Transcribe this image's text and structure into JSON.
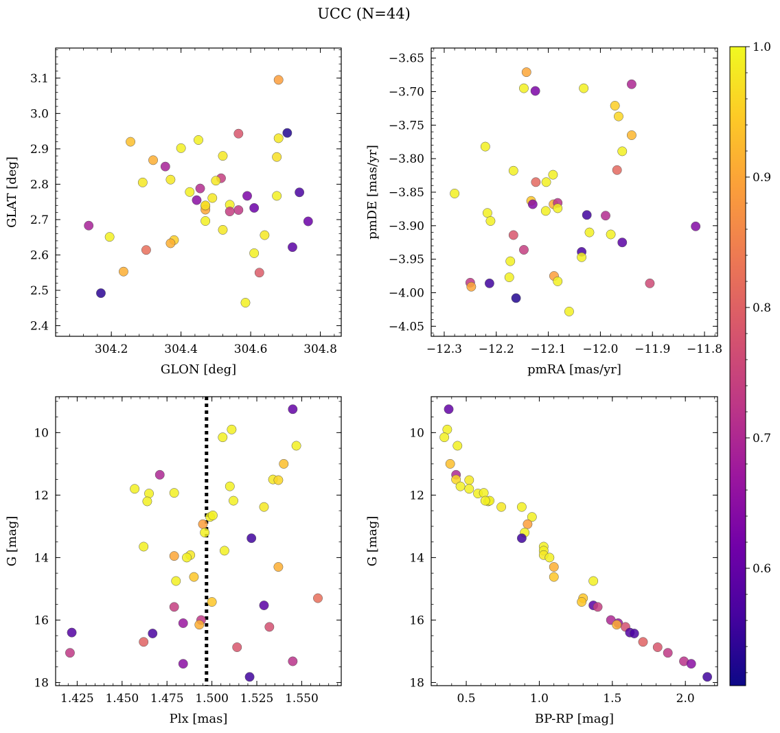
{
  "figure": {
    "title": "UCC (N=44)"
  },
  "colorbar": {
    "ticks": [
      "0.6",
      "0.7",
      "0.8",
      "0.9",
      "1.0"
    ],
    "tick_values": [
      0.6,
      0.7,
      0.8,
      0.9,
      1.0
    ],
    "range": [
      0.51,
      1.0
    ],
    "colormap": "plasma"
  },
  "chart_data": [
    {
      "type": "scatter",
      "xlabel": "GLON [deg]",
      "ylabel": "GLAT [deg]",
      "xlim": [
        304.04,
        304.86
      ],
      "ylim": [
        2.37,
        3.185
      ],
      "xticks": [
        304.2,
        304.4,
        304.6,
        304.8
      ],
      "xtick_labels": [
        "304.2",
        "304.4",
        "304.6",
        "304.8"
      ],
      "yticks": [
        2.4,
        2.5,
        2.6,
        2.7,
        2.8,
        2.9,
        3.0,
        3.1
      ],
      "ytick_labels": [
        "2.4",
        "2.5",
        "2.6",
        "2.7",
        "2.8",
        "2.9",
        "3.0",
        "3.1"
      ],
      "points": [
        {
          "x": 304.68,
          "y": 3.095,
          "c": 0.89
        },
        {
          "x": 304.705,
          "y": 2.945,
          "c": 0.53
        },
        {
          "x": 304.565,
          "y": 2.943,
          "c": 0.78
        },
        {
          "x": 304.68,
          "y": 2.93,
          "c": 0.98
        },
        {
          "x": 304.255,
          "y": 2.92,
          "c": 0.93
        },
        {
          "x": 304.45,
          "y": 2.925,
          "c": 0.99
        },
        {
          "x": 304.4,
          "y": 2.902,
          "c": 0.99
        },
        {
          "x": 304.52,
          "y": 2.88,
          "c": 0.98
        },
        {
          "x": 304.675,
          "y": 2.877,
          "c": 0.97
        },
        {
          "x": 304.32,
          "y": 2.868,
          "c": 0.91
        },
        {
          "x": 304.355,
          "y": 2.85,
          "c": 0.69
        },
        {
          "x": 304.37,
          "y": 2.813,
          "c": 0.98
        },
        {
          "x": 304.515,
          "y": 2.817,
          "c": 0.74
        },
        {
          "x": 304.5,
          "y": 2.81,
          "c": 0.98
        },
        {
          "x": 304.29,
          "y": 2.805,
          "c": 0.98
        },
        {
          "x": 304.455,
          "y": 2.788,
          "c": 0.71
        },
        {
          "x": 304.425,
          "y": 2.778,
          "c": 0.99
        },
        {
          "x": 304.74,
          "y": 2.777,
          "c": 0.57
        },
        {
          "x": 304.675,
          "y": 2.767,
          "c": 0.99
        },
        {
          "x": 304.59,
          "y": 2.767,
          "c": 0.63
        },
        {
          "x": 304.49,
          "y": 2.761,
          "c": 0.98
        },
        {
          "x": 304.445,
          "y": 2.755,
          "c": 0.65
        },
        {
          "x": 304.54,
          "y": 2.742,
          "c": 0.99
        },
        {
          "x": 304.47,
          "y": 2.738,
          "c": 0.95
        },
        {
          "x": 304.61,
          "y": 2.733,
          "c": 0.61
        },
        {
          "x": 304.47,
          "y": 2.728,
          "c": 0.9
        },
        {
          "x": 304.565,
          "y": 2.727,
          "c": 0.73
        },
        {
          "x": 304.54,
          "y": 2.723,
          "c": 0.74
        },
        {
          "x": 304.765,
          "y": 2.695,
          "c": 0.61
        },
        {
          "x": 304.47,
          "y": 2.696,
          "c": 0.99
        },
        {
          "x": 304.135,
          "y": 2.683,
          "c": 0.69
        },
        {
          "x": 304.52,
          "y": 2.671,
          "c": 0.98
        },
        {
          "x": 304.64,
          "y": 2.656,
          "c": 0.98
        },
        {
          "x": 304.195,
          "y": 2.651,
          "c": 0.99
        },
        {
          "x": 304.38,
          "y": 2.642,
          "c": 0.95
        },
        {
          "x": 304.37,
          "y": 2.633,
          "c": 0.91
        },
        {
          "x": 304.72,
          "y": 2.622,
          "c": 0.59
        },
        {
          "x": 304.3,
          "y": 2.614,
          "c": 0.82
        },
        {
          "x": 304.61,
          "y": 2.605,
          "c": 0.99
        },
        {
          "x": 304.235,
          "y": 2.553,
          "c": 0.91
        },
        {
          "x": 304.625,
          "y": 2.55,
          "c": 0.79
        },
        {
          "x": 304.17,
          "y": 2.492,
          "c": 0.54
        },
        {
          "x": 304.585,
          "y": 2.465,
          "c": 0.99
        },
        {
          "x": 304.47,
          "y": 2.74,
          "c": 0.97
        }
      ]
    },
    {
      "type": "scatter",
      "xlabel": "pmRA [mas/yr]",
      "ylabel": "pmDE [mas/yr]",
      "xlim": [
        -12.325,
        -11.775
      ],
      "ylim": [
        -4.065,
        -3.635
      ],
      "xticks": [
        -12.3,
        -12.2,
        -12.1,
        -12.0,
        -11.9,
        -11.8
      ],
      "xtick_labels": [
        "−12.3",
        "−12.2",
        "−12.1",
        "−12.0",
        "−11.9",
        "−11.8"
      ],
      "yticks": [
        -4.05,
        -4.0,
        -3.95,
        -3.9,
        -3.85,
        -3.8,
        -3.75,
        -3.7,
        -3.65
      ],
      "ytick_labels": [
        "−4.05",
        "−4.00",
        "−3.95",
        "−3.90",
        "−3.85",
        "−3.80",
        "−3.75",
        "−3.70",
        "−3.65"
      ],
      "points": [
        {
          "x": -12.142,
          "y": -3.671,
          "c": 0.9
        },
        {
          "x": -12.147,
          "y": -3.695,
          "c": 0.99
        },
        {
          "x": -12.125,
          "y": -3.699,
          "c": 0.63
        },
        {
          "x": -12.032,
          "y": -3.695,
          "c": 0.99
        },
        {
          "x": -11.94,
          "y": -3.689,
          "c": 0.7
        },
        {
          "x": -11.972,
          "y": -3.721,
          "c": 0.95
        },
        {
          "x": -11.965,
          "y": -3.737,
          "c": 0.96
        },
        {
          "x": -11.94,
          "y": -3.765,
          "c": 0.92
        },
        {
          "x": -12.221,
          "y": -3.782,
          "c": 0.99
        },
        {
          "x": -11.958,
          "y": -3.789,
          "c": 0.99
        },
        {
          "x": -11.968,
          "y": -3.817,
          "c": 0.81
        },
        {
          "x": -12.167,
          "y": -3.818,
          "c": 0.99
        },
        {
          "x": -12.091,
          "y": -3.824,
          "c": 0.99
        },
        {
          "x": -12.124,
          "y": -3.835,
          "c": 0.81
        },
        {
          "x": -12.104,
          "y": -3.835,
          "c": 0.99
        },
        {
          "x": -12.28,
          "y": -3.852,
          "c": 0.99
        },
        {
          "x": -12.133,
          "y": -3.863,
          "c": 0.94
        },
        {
          "x": -12.09,
          "y": -3.868,
          "c": 0.91
        },
        {
          "x": -12.082,
          "y": -3.866,
          "c": 0.72
        },
        {
          "x": -12.13,
          "y": -3.868,
          "c": 0.64
        },
        {
          "x": -12.105,
          "y": -3.878,
          "c": 0.99
        },
        {
          "x": -12.082,
          "y": -3.874,
          "c": 0.99
        },
        {
          "x": -12.217,
          "y": -3.881,
          "c": 0.99
        },
        {
          "x": -12.026,
          "y": -3.884,
          "c": 0.56
        },
        {
          "x": -11.99,
          "y": -3.885,
          "c": 0.71
        },
        {
          "x": -12.211,
          "y": -3.893,
          "c": 0.99
        },
        {
          "x": -11.817,
          "y": -3.901,
          "c": 0.64
        },
        {
          "x": -12.021,
          "y": -3.91,
          "c": 0.99
        },
        {
          "x": -11.98,
          "y": -3.913,
          "c": 0.99
        },
        {
          "x": -12.167,
          "y": -3.914,
          "c": 0.78
        },
        {
          "x": -11.958,
          "y": -3.925,
          "c": 0.59
        },
        {
          "x": -12.147,
          "y": -3.936,
          "c": 0.74
        },
        {
          "x": -12.036,
          "y": -3.939,
          "c": 0.57
        },
        {
          "x": -12.036,
          "y": -3.947,
          "c": 0.99
        },
        {
          "x": -12.173,
          "y": -3.953,
          "c": 0.99
        },
        {
          "x": -12.175,
          "y": -3.977,
          "c": 0.99
        },
        {
          "x": -12.089,
          "y": -3.975,
          "c": 0.89
        },
        {
          "x": -12.082,
          "y": -3.983,
          "c": 0.99
        },
        {
          "x": -12.25,
          "y": -3.985,
          "c": 0.73
        },
        {
          "x": -12.213,
          "y": -3.986,
          "c": 0.56
        },
        {
          "x": -11.905,
          "y": -3.986,
          "c": 0.76
        },
        {
          "x": -12.248,
          "y": -3.991,
          "c": 0.9
        },
        {
          "x": -12.162,
          "y": -4.008,
          "c": 0.53
        },
        {
          "x": -12.06,
          "y": -4.028,
          "c": 0.99
        }
      ]
    },
    {
      "type": "scatter",
      "xlabel": "Plx [mas]",
      "ylabel": "G [mag]",
      "xlim": [
        1.413,
        1.572
      ],
      "ylim": [
        18.1,
        8.85
      ],
      "y_inverted": true,
      "vline": 1.497,
      "xticks": [
        1.425,
        1.45,
        1.475,
        1.5,
        1.525,
        1.55
      ],
      "xtick_labels": [
        "1.425",
        "1.450",
        "1.475",
        "1.500",
        "1.525",
        "1.550"
      ],
      "yticks": [
        10,
        12,
        14,
        16,
        18
      ],
      "ytick_labels": [
        "10",
        "12",
        "14",
        "16",
        "18"
      ],
      "points": [
        {
          "x": 1.545,
          "y": 9.25,
          "c": 0.6
        },
        {
          "x": 1.511,
          "y": 9.9,
          "c": 0.99
        },
        {
          "x": 1.506,
          "y": 10.15,
          "c": 0.99
        },
        {
          "x": 1.547,
          "y": 10.42,
          "c": 0.99
        },
        {
          "x": 1.54,
          "y": 11.0,
          "c": 0.93
        },
        {
          "x": 1.471,
          "y": 11.35,
          "c": 0.7
        },
        {
          "x": 1.534,
          "y": 11.5,
          "c": 0.98
        },
        {
          "x": 1.537,
          "y": 11.52,
          "c": 0.96
        },
        {
          "x": 1.51,
          "y": 11.72,
          "c": 0.99
        },
        {
          "x": 1.457,
          "y": 11.8,
          "c": 0.99
        },
        {
          "x": 1.465,
          "y": 11.95,
          "c": 0.99
        },
        {
          "x": 1.479,
          "y": 11.93,
          "c": 0.99
        },
        {
          "x": 1.464,
          "y": 12.2,
          "c": 0.99
        },
        {
          "x": 1.512,
          "y": 12.18,
          "c": 0.99
        },
        {
          "x": 1.529,
          "y": 12.38,
          "c": 0.98
        },
        {
          "x": 1.499,
          "y": 12.7,
          "c": 0.99
        },
        {
          "x": 1.495,
          "y": 12.93,
          "c": 0.89
        },
        {
          "x": 1.496,
          "y": 13.2,
          "c": 0.99
        },
        {
          "x": 1.522,
          "y": 13.38,
          "c": 0.56
        },
        {
          "x": 1.462,
          "y": 13.65,
          "c": 0.99
        },
        {
          "x": 1.507,
          "y": 13.78,
          "c": 0.99
        },
        {
          "x": 1.479,
          "y": 13.95,
          "c": 0.9
        },
        {
          "x": 1.488,
          "y": 13.92,
          "c": 0.98
        },
        {
          "x": 1.486,
          "y": 14.0,
          "c": 0.99
        },
        {
          "x": 1.537,
          "y": 14.3,
          "c": 0.91
        },
        {
          "x": 1.49,
          "y": 14.62,
          "c": 0.94
        },
        {
          "x": 1.48,
          "y": 14.75,
          "c": 0.99
        },
        {
          "x": 1.559,
          "y": 15.3,
          "c": 0.82
        },
        {
          "x": 1.5,
          "y": 15.42,
          "c": 0.94
        },
        {
          "x": 1.529,
          "y": 15.53,
          "c": 0.59
        },
        {
          "x": 1.479,
          "y": 15.58,
          "c": 0.74
        },
        {
          "x": 1.494,
          "y": 16.0,
          "c": 0.73
        },
        {
          "x": 1.484,
          "y": 16.1,
          "c": 0.67
        },
        {
          "x": 1.493,
          "y": 16.15,
          "c": 0.91
        },
        {
          "x": 1.532,
          "y": 16.22,
          "c": 0.77
        },
        {
          "x": 1.422,
          "y": 16.4,
          "c": 0.58
        },
        {
          "x": 1.467,
          "y": 16.43,
          "c": 0.57
        },
        {
          "x": 1.462,
          "y": 16.7,
          "c": 0.8
        },
        {
          "x": 1.514,
          "y": 16.87,
          "c": 0.78
        },
        {
          "x": 1.421,
          "y": 17.05,
          "c": 0.73
        },
        {
          "x": 1.545,
          "y": 17.32,
          "c": 0.72
        },
        {
          "x": 1.484,
          "y": 17.4,
          "c": 0.65
        },
        {
          "x": 1.521,
          "y": 17.82,
          "c": 0.56
        },
        {
          "x": 1.5005,
          "y": 12.65,
          "c": 0.99
        }
      ]
    },
    {
      "type": "scatter",
      "xlabel": "BP-RP [mag]",
      "ylabel": "G [mag]",
      "xlim": [
        0.26,
        2.22
      ],
      "ylim": [
        18.1,
        8.85
      ],
      "y_inverted": true,
      "xticks": [
        0.5,
        1.0,
        1.5,
        2.0
      ],
      "xtick_labels": [
        "0.5",
        "1.0",
        "1.5",
        "2.0"
      ],
      "yticks": [
        10,
        12,
        14,
        16,
        18
      ],
      "ytick_labels": [
        "10",
        "12",
        "14",
        "16",
        "18"
      ],
      "points": [
        {
          "x": 0.38,
          "y": 9.25,
          "c": 0.6
        },
        {
          "x": 0.37,
          "y": 9.9,
          "c": 0.99
        },
        {
          "x": 0.35,
          "y": 10.15,
          "c": 0.99
        },
        {
          "x": 0.44,
          "y": 10.42,
          "c": 0.99
        },
        {
          "x": 0.39,
          "y": 11.0,
          "c": 0.93
        },
        {
          "x": 0.43,
          "y": 11.35,
          "c": 0.7
        },
        {
          "x": 0.43,
          "y": 11.5,
          "c": 0.96
        },
        {
          "x": 0.52,
          "y": 11.52,
          "c": 0.98
        },
        {
          "x": 0.46,
          "y": 11.72,
          "c": 0.99
        },
        {
          "x": 0.52,
          "y": 11.8,
          "c": 0.99
        },
        {
          "x": 0.58,
          "y": 11.95,
          "c": 0.99
        },
        {
          "x": 0.62,
          "y": 11.93,
          "c": 0.99
        },
        {
          "x": 0.65,
          "y": 12.2,
          "c": 0.99
        },
        {
          "x": 0.66,
          "y": 12.18,
          "c": 0.99
        },
        {
          "x": 0.74,
          "y": 12.38,
          "c": 0.98
        },
        {
          "x": 0.88,
          "y": 12.38,
          "c": 0.99
        },
        {
          "x": 0.95,
          "y": 12.7,
          "c": 0.99
        },
        {
          "x": 0.92,
          "y": 12.93,
          "c": 0.89
        },
        {
          "x": 0.9,
          "y": 13.2,
          "c": 0.99
        },
        {
          "x": 0.88,
          "y": 13.38,
          "c": 0.56
        },
        {
          "x": 1.03,
          "y": 13.65,
          "c": 0.99
        },
        {
          "x": 1.03,
          "y": 13.78,
          "c": 0.99
        },
        {
          "x": 1.03,
          "y": 13.92,
          "c": 0.98
        },
        {
          "x": 1.07,
          "y": 14.0,
          "c": 0.99
        },
        {
          "x": 1.1,
          "y": 14.3,
          "c": 0.91
        },
        {
          "x": 1.1,
          "y": 14.62,
          "c": 0.94
        },
        {
          "x": 1.37,
          "y": 14.75,
          "c": 0.99
        },
        {
          "x": 1.3,
          "y": 15.3,
          "c": 0.94
        },
        {
          "x": 1.29,
          "y": 15.42,
          "c": 0.94
        },
        {
          "x": 1.37,
          "y": 15.53,
          "c": 0.59
        },
        {
          "x": 1.4,
          "y": 15.58,
          "c": 0.74
        },
        {
          "x": 1.49,
          "y": 16.0,
          "c": 0.7
        },
        {
          "x": 1.54,
          "y": 16.1,
          "c": 0.67
        },
        {
          "x": 1.53,
          "y": 16.15,
          "c": 0.91
        },
        {
          "x": 1.59,
          "y": 16.22,
          "c": 0.77
        },
        {
          "x": 1.62,
          "y": 16.4,
          "c": 0.58
        },
        {
          "x": 1.65,
          "y": 16.43,
          "c": 0.57
        },
        {
          "x": 1.71,
          "y": 16.7,
          "c": 0.8
        },
        {
          "x": 1.81,
          "y": 16.87,
          "c": 0.78
        },
        {
          "x": 1.88,
          "y": 17.05,
          "c": 0.73
        },
        {
          "x": 1.99,
          "y": 17.32,
          "c": 0.72
        },
        {
          "x": 2.04,
          "y": 17.4,
          "c": 0.65
        },
        {
          "x": 2.15,
          "y": 17.82,
          "c": 0.56
        },
        {
          "x": 0.63,
          "y": 12.18,
          "c": 0.99
        }
      ]
    }
  ]
}
